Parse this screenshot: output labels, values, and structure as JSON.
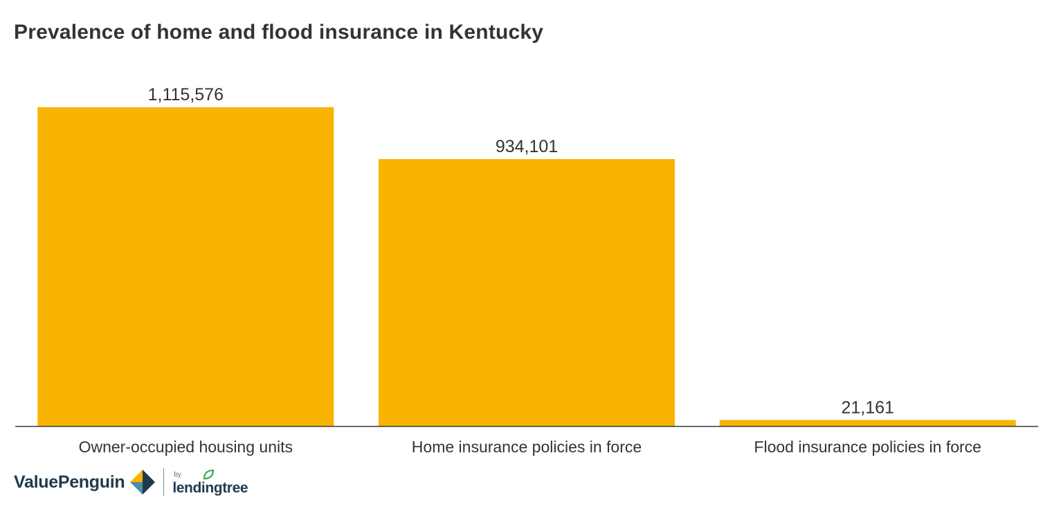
{
  "chart_data": {
    "type": "bar",
    "title": "Prevalence of home and flood insurance in Kentucky",
    "categories": [
      "Owner-occupied housing units",
      "Home insurance policies in force",
      "Flood insurance policies in force"
    ],
    "values": [
      1115576,
      934101,
      21161
    ],
    "value_labels": [
      "1,115,576",
      "934,101",
      "21,161"
    ],
    "xlabel": "",
    "ylabel": "",
    "ylim": [
      0,
      1115576
    ],
    "grid": false,
    "legend": "none",
    "bar_color": "#f8b400",
    "axis_color": "#333333"
  },
  "branding": {
    "name": "ValuePenguin",
    "by": "by",
    "partner": "lendingtree",
    "mark_colors": [
      "#1f3a4d",
      "#f8b400",
      "#4a90a4"
    ],
    "leaf_color": "#3aa657"
  }
}
